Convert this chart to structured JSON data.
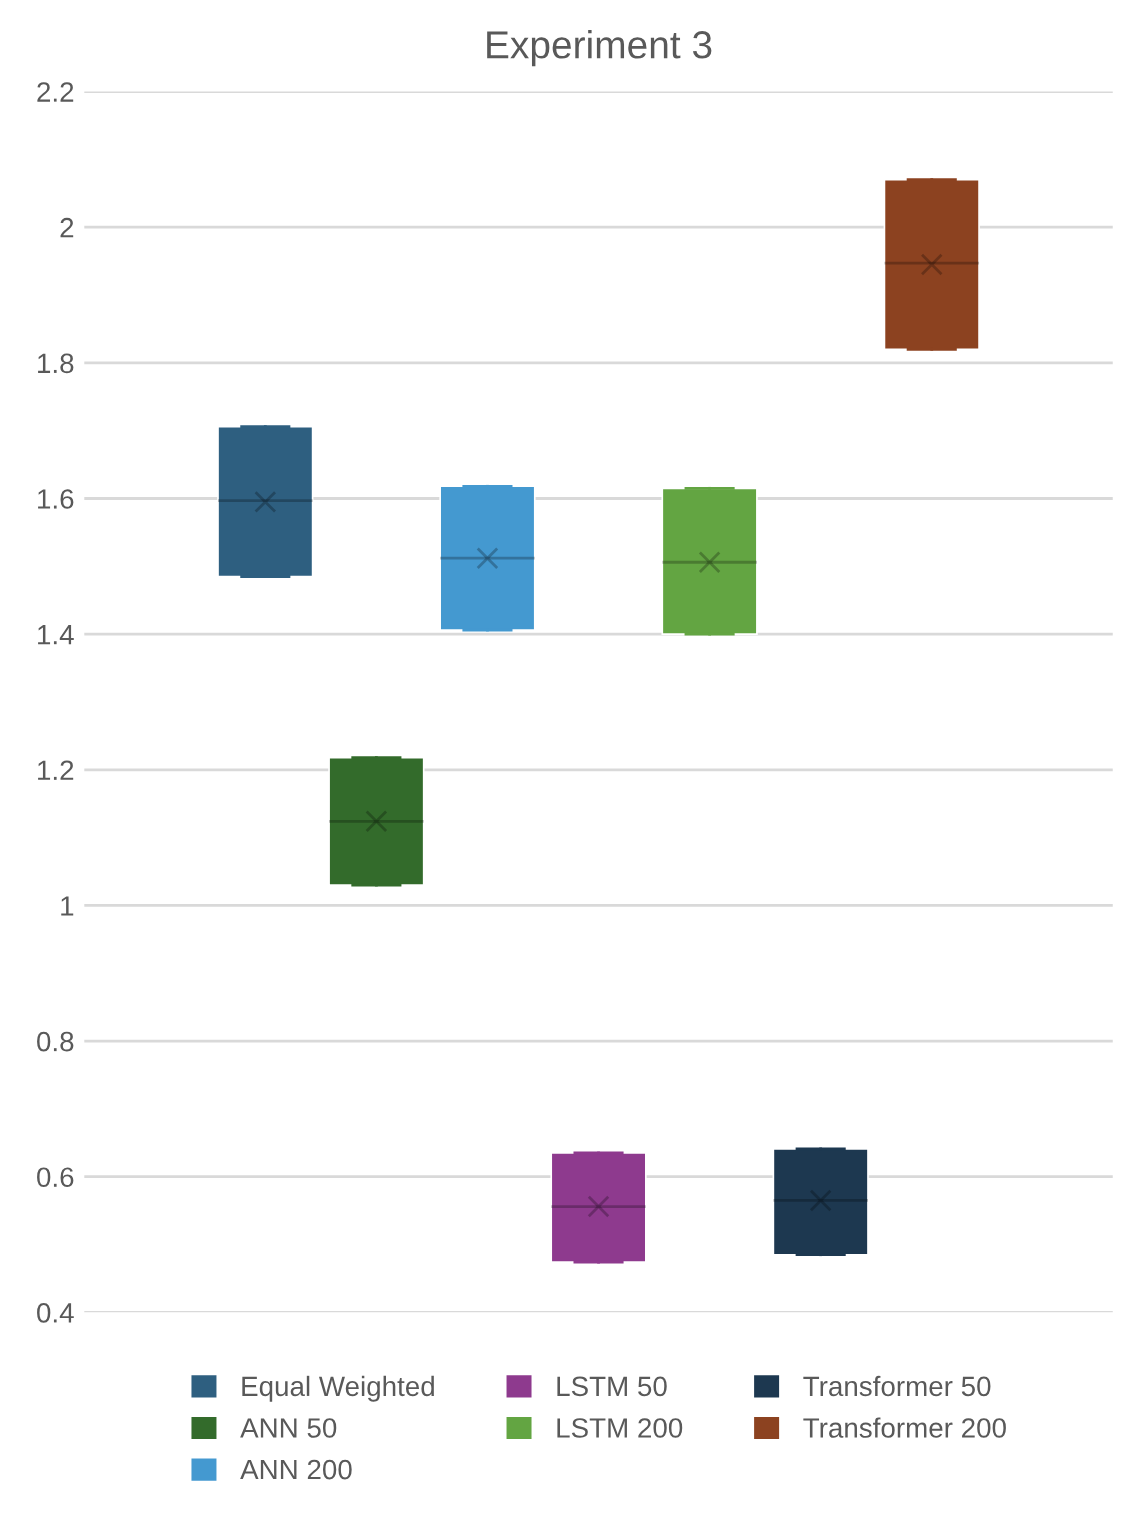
{
  "chart_data": {
    "type": "box",
    "title": "Experiment 3",
    "categories": [
      null
    ],
    "ylim": [
      0.4,
      2.2
    ],
    "yticks": [
      0.4,
      0.6,
      0.8,
      1,
      1.2,
      1.4,
      1.6,
      1.8,
      2,
      2.2
    ],
    "grid": "y",
    "legend": "bottom",
    "marker": "cross",
    "series": [
      {
        "name": "Equal Weighted",
        "color": "#2e5f80",
        "boxes": [
          {
            "low": 1.485,
            "q1": 1.485,
            "median": 1.597,
            "q3": 1.706,
            "high": 1.706,
            "mean": 1.595
          }
        ]
      },
      {
        "name": "ANN 50",
        "color": "#336b2b",
        "boxes": [
          {
            "low": 1.03,
            "q1": 1.03,
            "median": 1.124,
            "q3": 1.218,
            "high": 1.218,
            "mean": 1.124
          }
        ]
      },
      {
        "name": "ANN 200",
        "color": "#4499d0",
        "boxes": [
          {
            "low": 1.406,
            "q1": 1.406,
            "median": 1.512,
            "q3": 1.618,
            "high": 1.618,
            "mean": 1.512
          }
        ]
      },
      {
        "name": "LSTM 50",
        "color": "#8e3a8e",
        "boxes": [
          {
            "low": 0.474,
            "q1": 0.474,
            "median": 0.556,
            "q3": 0.635,
            "high": 0.635,
            "mean": 0.556
          }
        ]
      },
      {
        "name": "LSTM 200",
        "color": "#63a542",
        "boxes": [
          {
            "low": 1.4,
            "q1": 1.4,
            "median": 1.506,
            "q3": 1.615,
            "high": 1.615,
            "mean": 1.506
          }
        ]
      },
      {
        "name": "Transformer 50",
        "color": "#1d3850",
        "boxes": [
          {
            "low": 0.485,
            "q1": 0.485,
            "median": 0.565,
            "q3": 0.641,
            "high": 0.641,
            "mean": 0.565
          }
        ]
      },
      {
        "name": "Transformer 200",
        "color": "#8c4220",
        "boxes": [
          {
            "low": 1.82,
            "q1": 1.82,
            "median": 1.947,
            "q3": 2.07,
            "high": 2.07,
            "mean": 1.945
          }
        ]
      }
    ]
  }
}
